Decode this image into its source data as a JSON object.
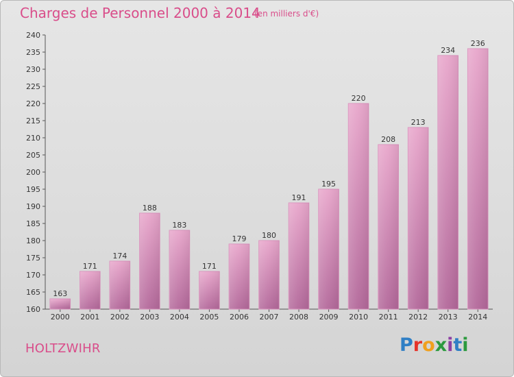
{
  "chart_data": {
    "type": "bar",
    "title": "Charges de Personnel 2000 à 2014",
    "subtitle": "(en milliers d'€)",
    "categories": [
      "2000",
      "2001",
      "2002",
      "2003",
      "2004",
      "2005",
      "2006",
      "2007",
      "2008",
      "2009",
      "2010",
      "2011",
      "2012",
      "2013",
      "2014"
    ],
    "values": [
      163,
      171,
      174,
      188,
      183,
      171,
      179,
      180,
      191,
      195,
      220,
      208,
      213,
      234,
      236
    ],
    "ylim": [
      160,
      240
    ],
    "yticks": [
      160,
      165,
      170,
      175,
      180,
      185,
      190,
      195,
      200,
      205,
      210,
      215,
      220,
      225,
      230,
      235,
      240
    ],
    "xlabel": "",
    "ylabel": "",
    "grid": false,
    "bar_color_top": "#e8a6cb",
    "bar_color_bottom": "#b3689a"
  },
  "footer": {
    "city": "HOLTZWIHR",
    "logo_letters": [
      "P",
      "r",
      "o",
      "x",
      "i",
      "t",
      "i"
    ]
  },
  "colors": {
    "accent": "#d94d8a"
  }
}
